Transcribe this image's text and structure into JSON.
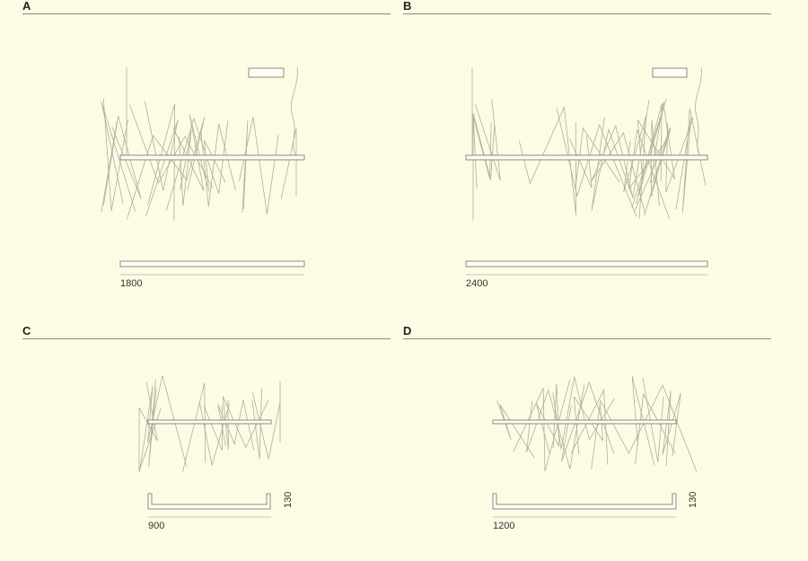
{
  "panels": [
    {
      "label": "A",
      "width": "1800"
    },
    {
      "label": "B",
      "width": "2400"
    },
    {
      "label": "C",
      "width": "900",
      "height": "130"
    },
    {
      "label": "D",
      "width": "1200",
      "height": "130"
    }
  ]
}
